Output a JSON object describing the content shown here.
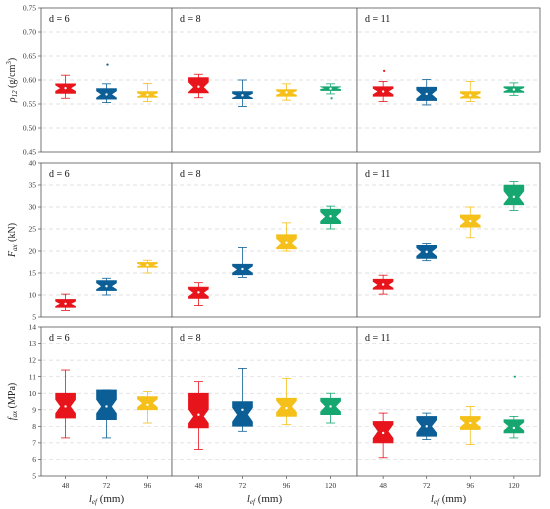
{
  "colors": {
    "48": "#e8141b",
    "72": "#0c5f96",
    "96": "#f5c01a",
    "120": "#16a770",
    "outlier": "#8e2aa8"
  },
  "chart_data": [
    {
      "type": "boxplot",
      "ylabel_main": "ρ",
      "ylabel_sub": "12",
      "ylabel_rest": " (g/cm",
      "ylabel_sup": "3",
      "ylabel_close": ")",
      "ylim": [
        0.45,
        0.75
      ],
      "yticks": [
        "0.45",
        "0.50",
        "0.55",
        "0.60",
        "0.65",
        "0.70",
        "0.75"
      ],
      "ytick_values": [
        0.45,
        0.5,
        0.55,
        0.6,
        0.65,
        0.7,
        0.75
      ],
      "grid": true,
      "panels": [
        {
          "label": "d = 6",
          "boxes": [
            {
              "l": "48",
              "min": 0.562,
              "q1": 0.572,
              "med": 0.583,
              "q3": 0.592,
              "max": 0.61,
              "mean": 0.583,
              "outliers": []
            },
            {
              "l": "72",
              "min": 0.553,
              "q1": 0.56,
              "med": 0.57,
              "q3": 0.582,
              "max": 0.592,
              "mean": 0.57,
              "outliers": [
                0.632
              ]
            },
            {
              "l": "96",
              "min": 0.555,
              "q1": 0.564,
              "med": 0.569,
              "q3": 0.576,
              "max": 0.593,
              "mean": 0.569,
              "outliers": []
            }
          ]
        },
        {
          "label": "d = 8",
          "boxes": [
            {
              "l": "48",
              "min": 0.563,
              "q1": 0.573,
              "med": 0.585,
              "q3": 0.605,
              "max": 0.612,
              "mean": 0.586,
              "outliers": []
            },
            {
              "l": "72",
              "min": 0.545,
              "q1": 0.561,
              "med": 0.567,
              "q3": 0.576,
              "max": 0.6,
              "mean": 0.568,
              "outliers": []
            },
            {
              "l": "96",
              "min": 0.558,
              "q1": 0.566,
              "med": 0.573,
              "q3": 0.58,
              "max": 0.592,
              "mean": 0.574,
              "outliers": []
            },
            {
              "l": "120",
              "min": 0.571,
              "q1": 0.578,
              "med": 0.583,
              "q3": 0.586,
              "max": 0.592,
              "mean": 0.582,
              "outliers": [
                0.562
              ]
            }
          ]
        },
        {
          "label": "d = 11",
          "boxes": [
            {
              "l": "48",
              "min": 0.555,
              "q1": 0.566,
              "med": 0.576,
              "q3": 0.586,
              "max": 0.597,
              "mean": 0.576,
              "outliers": [
                0.619
              ]
            },
            {
              "l": "72",
              "min": 0.548,
              "q1": 0.557,
              "med": 0.57,
              "q3": 0.585,
              "max": 0.601,
              "mean": 0.571,
              "outliers": []
            },
            {
              "l": "96",
              "min": 0.555,
              "q1": 0.562,
              "med": 0.568,
              "q3": 0.576,
              "max": 0.597,
              "mean": 0.568,
              "outliers": []
            },
            {
              "l": "120",
              "min": 0.568,
              "q1": 0.574,
              "med": 0.58,
              "q3": 0.586,
              "max": 0.594,
              "mean": 0.58,
              "outliers": []
            }
          ]
        }
      ]
    },
    {
      "type": "boxplot",
      "ylabel_main": "F",
      "ylabel_sub": "ax",
      "ylabel_rest": " (kN)",
      "ylabel_sup": "",
      "ylabel_close": "",
      "ylim": [
        5,
        40
      ],
      "yticks": [
        "5",
        "10",
        "15",
        "20",
        "25",
        "30",
        "35",
        "40"
      ],
      "ytick_values": [
        5,
        10,
        15,
        20,
        25,
        30,
        35,
        40
      ],
      "grid": true,
      "panels": [
        {
          "label": "d = 6",
          "boxes": [
            {
              "l": "48",
              "min": 6.5,
              "q1": 7.2,
              "med": 8.0,
              "q3": 9.0,
              "max": 10.2,
              "mean": 8.0,
              "outliers": []
            },
            {
              "l": "72",
              "min": 10.0,
              "q1": 11.0,
              "med": 12.0,
              "q3": 13.3,
              "max": 13.8,
              "mean": 12.0,
              "outliers": []
            },
            {
              "l": "96",
              "min": 15.0,
              "q1": 16.3,
              "med": 16.8,
              "q3": 17.4,
              "max": 17.9,
              "mean": 16.8,
              "outliers": []
            }
          ]
        },
        {
          "label": "d = 8",
          "boxes": [
            {
              "l": "48",
              "min": 7.6,
              "q1": 9.2,
              "med": 10.5,
              "q3": 11.8,
              "max": 12.8,
              "mean": 10.6,
              "outliers": []
            },
            {
              "l": "72",
              "min": 14.0,
              "q1": 14.6,
              "med": 15.8,
              "q3": 17.0,
              "max": 20.8,
              "mean": 15.9,
              "outliers": []
            },
            {
              "l": "96",
              "min": 20.0,
              "q1": 20.5,
              "med": 21.8,
              "q3": 23.7,
              "max": 26.4,
              "mean": 21.9,
              "outliers": []
            },
            {
              "l": "120",
              "min": 25.0,
              "q1": 26.2,
              "med": 27.8,
              "q3": 29.5,
              "max": 30.2,
              "mean": 27.9,
              "outliers": []
            }
          ]
        },
        {
          "label": "d = 11",
          "boxes": [
            {
              "l": "48",
              "min": 10.2,
              "q1": 11.3,
              "med": 12.3,
              "q3": 13.6,
              "max": 14.5,
              "mean": 12.4,
              "outliers": []
            },
            {
              "l": "72",
              "min": 17.8,
              "q1": 18.3,
              "med": 19.8,
              "q3": 21.3,
              "max": 21.7,
              "mean": 19.8,
              "outliers": []
            },
            {
              "l": "96",
              "min": 23.0,
              "q1": 25.4,
              "med": 26.7,
              "q3": 28.2,
              "max": 30.0,
              "mean": 26.8,
              "outliers": []
            },
            {
              "l": "120",
              "min": 29.2,
              "q1": 30.5,
              "med": 32.2,
              "q3": 35.0,
              "max": 35.8,
              "mean": 32.3,
              "outliers": []
            }
          ]
        }
      ]
    },
    {
      "type": "boxplot",
      "ylabel_main": "f",
      "ylabel_sub": "ax",
      "ylabel_rest": " (MPa)",
      "ylabel_sup": "",
      "ylabel_close": "",
      "ylim": [
        5,
        14
      ],
      "yticks": [
        "5",
        "6",
        "7",
        "8",
        "9",
        "10",
        "11",
        "12",
        "13",
        "14"
      ],
      "ytick_values": [
        5,
        6,
        7,
        8,
        9,
        10,
        11,
        12,
        13,
        14
      ],
      "grid": true,
      "panels": [
        {
          "label": "d = 6",
          "boxes": [
            {
              "l": "48",
              "min": 7.3,
              "q1": 8.5,
              "med": 9.2,
              "q3": 10.0,
              "max": 11.4,
              "mean": 9.2,
              "outliers": []
            },
            {
              "l": "72",
              "min": 7.3,
              "q1": 8.4,
              "med": 9.2,
              "q3": 10.2,
              "max": 10.2,
              "mean": 9.2,
              "outliers": []
            },
            {
              "l": "96",
              "min": 8.2,
              "q1": 9.0,
              "med": 9.4,
              "q3": 9.8,
              "max": 10.1,
              "mean": 9.3,
              "outliers": []
            }
          ]
        },
        {
          "label": "d = 8",
          "boxes": [
            {
              "l": "48",
              "min": 6.6,
              "q1": 7.9,
              "med": 8.6,
              "q3": 10.0,
              "max": 10.7,
              "mean": 8.7,
              "outliers": []
            },
            {
              "l": "72",
              "min": 7.7,
              "q1": 8.0,
              "med": 8.7,
              "q3": 9.5,
              "max": 11.5,
              "mean": 9.0,
              "outliers": []
            },
            {
              "l": "96",
              "min": 8.1,
              "q1": 8.6,
              "med": 9.2,
              "q3": 9.7,
              "max": 10.9,
              "mean": 9.1,
              "outliers": []
            },
            {
              "l": "120",
              "min": 8.2,
              "q1": 8.7,
              "med": 9.2,
              "q3": 9.7,
              "max": 10.0,
              "mean": 9.2,
              "outliers": []
            }
          ]
        },
        {
          "label": "d = 11",
          "boxes": [
            {
              "l": "48",
              "min": 6.1,
              "q1": 7.0,
              "med": 7.7,
              "q3": 8.3,
              "max": 8.8,
              "mean": 7.6,
              "outliers": []
            },
            {
              "l": "72",
              "min": 7.2,
              "q1": 7.4,
              "med": 8.0,
              "q3": 8.6,
              "max": 8.8,
              "mean": 8.0,
              "outliers": []
            },
            {
              "l": "96",
              "min": 6.9,
              "q1": 7.8,
              "med": 8.2,
              "q3": 8.6,
              "max": 9.2,
              "mean": 8.2,
              "outliers": []
            },
            {
              "l": "120",
              "min": 7.3,
              "q1": 7.6,
              "med": 8.0,
              "q3": 8.4,
              "max": 8.6,
              "mean": 7.9,
              "outliers": [
                11.0
              ]
            }
          ]
        }
      ]
    }
  ],
  "x_axis": {
    "label_main": "l",
    "label_sub": "ef",
    "label_rest": " (mm)",
    "ticks_d6": [
      "48",
      "72",
      "96"
    ],
    "ticks_d8": [
      "48",
      "72",
      "96",
      "120"
    ],
    "ticks_d11": [
      "48",
      "72",
      "96",
      "120"
    ]
  }
}
